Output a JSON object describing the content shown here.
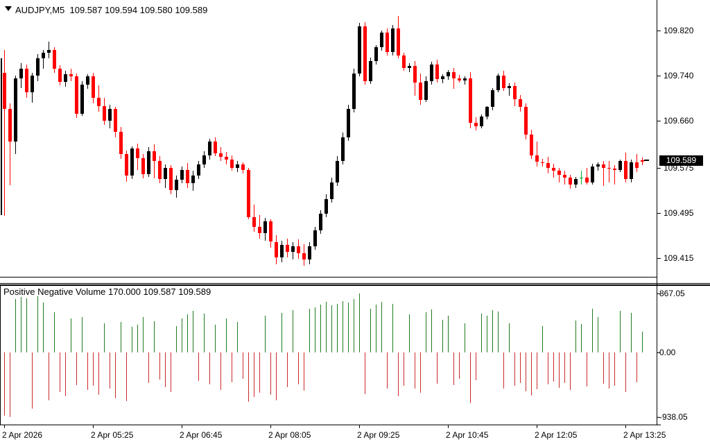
{
  "header": {
    "symbol_line": "AUDJPY,M5  109.587 109.594 109.580 109.589"
  },
  "indicator": {
    "title": "Positive Negative Volume 170.000 109.587 109.589"
  },
  "price_axis": {
    "labels": [
      "109.820",
      "109.740",
      "109.660",
      "109.575",
      "109.495",
      "109.415"
    ],
    "current_price": "109.589"
  },
  "volume_axis": {
    "labels": [
      "867.05",
      "0.00",
      "-938.05"
    ]
  },
  "time_axis": {
    "labels": [
      {
        "index": 0,
        "label": "2 Apr 2026"
      },
      {
        "index": 16,
        "label": "2 Apr 05:25"
      },
      {
        "index": 32,
        "label": "2 Apr 06:45"
      },
      {
        "index": 48,
        "label": "2 Apr 08:05"
      },
      {
        "index": 64,
        "label": "2 Apr 09:25"
      },
      {
        "index": 80,
        "label": "2 Apr 10:45"
      },
      {
        "index": 96,
        "label": "2 Apr 12:05"
      },
      {
        "index": 112,
        "label": "2 Apr 13:25"
      }
    ]
  },
  "colors": {
    "background": "#FFFFFF",
    "text": "#000000",
    "bull_candle": "#000000",
    "bear_candle": "#FF0000",
    "doji_candle": "#00B22C",
    "volume_up": "#1E7B1E",
    "volume_down": "#CC2929",
    "badge_bg": "#000000",
    "badge_fg": "#FFFFFF",
    "axis_line": "#000000"
  },
  "chart_data": {
    "type": "candlestick",
    "title": "AUDJPY,M5",
    "symbol": "AUDJPY",
    "timeframe": "M5",
    "current_bar": {
      "open": 109.587,
      "high": 109.594,
      "low": 109.58,
      "close": 109.589
    },
    "price_ticks": [
      109.82,
      109.74,
      109.66,
      109.575,
      109.495,
      109.415
    ],
    "ylim": [
      109.38,
      109.86
    ],
    "grid": false,
    "y_calibration": {
      "p1": 109.82,
      "y1": 44,
      "p2": 109.415,
      "y2": 372
    },
    "x_start": 6,
    "x_step": 8,
    "left_edge_wick": {
      "x": 1,
      "top": 109.77,
      "bottom": 109.492
    },
    "candles": [
      [
        109.745,
        109.785,
        109.49,
        109.68,
        "d"
      ],
      [
        109.68,
        109.69,
        109.545,
        109.622,
        "d"
      ],
      [
        109.622,
        109.74,
        109.6,
        109.735,
        "u"
      ],
      [
        109.735,
        109.762,
        109.718,
        109.752,
        "u"
      ],
      [
        109.752,
        109.76,
        109.7,
        109.71,
        "d"
      ],
      [
        109.71,
        109.745,
        109.692,
        109.74,
        "u"
      ],
      [
        109.74,
        109.778,
        109.73,
        109.77,
        "u"
      ],
      [
        109.77,
        109.786,
        109.752,
        109.78,
        "u"
      ],
      [
        109.78,
        109.8,
        109.77,
        109.785,
        "u"
      ],
      [
        109.785,
        109.79,
        109.745,
        109.752,
        "d"
      ],
      [
        109.752,
        109.758,
        109.722,
        109.728,
        "d"
      ],
      [
        109.728,
        109.748,
        109.72,
        109.742,
        "u"
      ],
      [
        109.742,
        109.752,
        109.73,
        109.738,
        "d"
      ],
      [
        109.738,
        109.744,
        109.664,
        109.672,
        "d"
      ],
      [
        109.672,
        109.73,
        109.668,
        109.724,
        "u"
      ],
      [
        109.724,
        109.742,
        109.716,
        109.738,
        "u"
      ],
      [
        109.738,
        109.745,
        109.69,
        109.7,
        "d"
      ],
      [
        109.7,
        109.722,
        109.676,
        109.686,
        "d"
      ],
      [
        109.686,
        109.7,
        109.652,
        109.66,
        "d"
      ],
      [
        109.66,
        109.688,
        109.646,
        109.68,
        "u"
      ],
      [
        109.68,
        109.684,
        109.63,
        109.64,
        "d"
      ],
      [
        109.64,
        109.648,
        109.592,
        109.6,
        "d"
      ],
      [
        109.6,
        109.606,
        109.551,
        109.562,
        "d"
      ],
      [
        109.562,
        109.614,
        109.556,
        109.61,
        "u"
      ],
      [
        109.61,
        109.619,
        109.572,
        109.593,
        "d"
      ],
      [
        109.593,
        109.6,
        109.557,
        109.565,
        "d"
      ],
      [
        109.565,
        109.612,
        109.56,
        109.605,
        "u"
      ],
      [
        109.605,
        109.618,
        109.557,
        109.588,
        "d"
      ],
      [
        109.588,
        109.596,
        109.548,
        109.556,
        "d"
      ],
      [
        109.556,
        109.582,
        109.54,
        109.575,
        "u"
      ],
      [
        109.575,
        109.58,
        109.528,
        109.536,
        "d"
      ],
      [
        109.536,
        109.562,
        109.522,
        109.555,
        "u"
      ],
      [
        109.555,
        109.578,
        109.548,
        109.572,
        "u"
      ],
      [
        109.572,
        109.584,
        109.54,
        109.548,
        "d"
      ],
      [
        109.548,
        109.57,
        109.535,
        109.562,
        "u"
      ],
      [
        109.562,
        109.588,
        109.556,
        109.582,
        "u"
      ],
      [
        109.582,
        109.605,
        109.575,
        109.598,
        "u"
      ],
      [
        109.598,
        109.627,
        109.59,
        109.622,
        "u"
      ],
      [
        109.622,
        109.63,
        109.596,
        109.602,
        "d"
      ],
      [
        109.602,
        109.612,
        109.588,
        109.595,
        "d"
      ],
      [
        109.595,
        109.604,
        109.582,
        109.59,
        "d"
      ],
      [
        109.59,
        109.598,
        109.57,
        109.576,
        "d"
      ],
      [
        109.576,
        109.588,
        109.568,
        109.582,
        "u"
      ],
      [
        109.582,
        109.586,
        109.566,
        109.572,
        "d"
      ],
      [
        109.572,
        109.576,
        109.484,
        109.488,
        "d"
      ],
      [
        109.488,
        109.51,
        109.462,
        109.47,
        "d"
      ],
      [
        109.47,
        109.492,
        109.45,
        109.46,
        "d"
      ],
      [
        109.46,
        109.486,
        109.446,
        109.48,
        "u"
      ],
      [
        109.48,
        109.484,
        109.434,
        109.444,
        "d"
      ],
      [
        109.444,
        109.456,
        109.404,
        109.416,
        "d"
      ],
      [
        109.416,
        109.446,
        109.408,
        109.438,
        "u"
      ],
      [
        109.438,
        109.45,
        109.416,
        109.426,
        "d"
      ],
      [
        109.426,
        109.444,
        109.412,
        109.436,
        "u"
      ],
      [
        109.436,
        109.448,
        109.414,
        109.424,
        "d"
      ],
      [
        109.424,
        109.44,
        109.402,
        109.412,
        "d"
      ],
      [
        109.412,
        109.444,
        109.404,
        109.436,
        "u"
      ],
      [
        109.436,
        109.47,
        109.43,
        109.464,
        "u"
      ],
      [
        109.464,
        109.5,
        109.458,
        109.494,
        "u"
      ],
      [
        109.494,
        109.528,
        109.488,
        109.52,
        "u"
      ],
      [
        109.52,
        109.558,
        109.514,
        109.55,
        "u"
      ],
      [
        109.55,
        109.596,
        109.544,
        109.588,
        "u"
      ],
      [
        109.588,
        109.638,
        109.582,
        109.63,
        "u"
      ],
      [
        109.63,
        109.688,
        109.624,
        109.68,
        "u"
      ],
      [
        109.68,
        109.752,
        109.674,
        109.744,
        "u"
      ],
      [
        109.744,
        109.833,
        109.738,
        109.827,
        "u"
      ],
      [
        109.827,
        109.835,
        109.724,
        109.73,
        "d"
      ],
      [
        109.73,
        109.772,
        109.725,
        109.766,
        "u"
      ],
      [
        109.766,
        109.794,
        109.76,
        109.79,
        "u"
      ],
      [
        109.79,
        109.82,
        109.784,
        109.816,
        "u"
      ],
      [
        109.816,
        109.824,
        109.776,
        109.782,
        "d"
      ],
      [
        109.782,
        109.83,
        109.776,
        109.824,
        "u"
      ],
      [
        109.824,
        109.846,
        109.77,
        109.775,
        "d"
      ],
      [
        109.775,
        109.78,
        109.748,
        109.753,
        "d"
      ],
      [
        109.753,
        109.762,
        109.746,
        109.757,
        "u"
      ],
      [
        109.757,
        109.766,
        109.704,
        109.727,
        "d"
      ],
      [
        109.727,
        109.744,
        109.688,
        109.697,
        "d"
      ],
      [
        109.697,
        109.738,
        109.693,
        109.73,
        "u"
      ],
      [
        109.73,
        109.764,
        109.724,
        109.76,
        "u"
      ],
      [
        109.76,
        109.768,
        109.728,
        109.733,
        "d"
      ],
      [
        109.733,
        109.742,
        109.726,
        109.738,
        "u"
      ],
      [
        109.738,
        109.75,
        109.732,
        109.746,
        "u"
      ],
      [
        109.746,
        109.753,
        109.716,
        109.735,
        "d"
      ],
      [
        109.735,
        109.741,
        109.727,
        109.731,
        "d"
      ],
      [
        109.731,
        109.738,
        109.724,
        109.735,
        "u"
      ],
      [
        109.735,
        109.746,
        109.646,
        109.656,
        "d"
      ],
      [
        109.656,
        109.666,
        109.642,
        109.65,
        "d"
      ],
      [
        109.65,
        109.67,
        109.646,
        109.667,
        "u"
      ],
      [
        109.667,
        109.686,
        109.662,
        109.684,
        "u"
      ],
      [
        109.684,
        109.718,
        109.678,
        109.714,
        "u"
      ],
      [
        109.714,
        109.744,
        109.71,
        109.74,
        "u"
      ],
      [
        109.74,
        109.748,
        109.712,
        109.717,
        "d"
      ],
      [
        109.717,
        109.726,
        109.704,
        109.721,
        "u"
      ],
      [
        109.721,
        109.727,
        109.686,
        109.698,
        "d"
      ],
      [
        109.698,
        109.705,
        109.676,
        109.684,
        "d"
      ],
      [
        109.684,
        109.69,
        109.626,
        109.635,
        "d"
      ],
      [
        109.635,
        109.644,
        109.592,
        109.598,
        "d"
      ],
      [
        109.598,
        109.622,
        109.578,
        109.586,
        "d"
      ],
      [
        109.586,
        109.592,
        109.578,
        109.584,
        "d"
      ],
      [
        109.584,
        109.595,
        109.566,
        109.576,
        "d"
      ],
      [
        109.576,
        109.583,
        109.558,
        109.57,
        "d"
      ],
      [
        109.57,
        109.576,
        109.55,
        109.563,
        "d"
      ],
      [
        109.563,
        109.57,
        109.546,
        109.558,
        "d"
      ],
      [
        109.558,
        109.563,
        109.538,
        109.546,
        "d"
      ],
      [
        109.546,
        109.56,
        109.54,
        109.556,
        "u"
      ],
      [
        109.558,
        109.57,
        109.546,
        109.558,
        "g"
      ],
      [
        109.558,
        109.576,
        109.546,
        109.55,
        "d"
      ],
      [
        109.55,
        109.583,
        109.546,
        109.578,
        "u"
      ],
      [
        109.578,
        109.586,
        109.57,
        109.582,
        "u"
      ],
      [
        109.582,
        109.588,
        109.543,
        109.576,
        "d"
      ],
      [
        109.576,
        109.588,
        109.55,
        109.574,
        "d"
      ],
      [
        109.574,
        109.58,
        109.546,
        109.572,
        "d"
      ],
      [
        109.572,
        109.59,
        109.568,
        109.588,
        "u"
      ],
      [
        109.588,
        109.603,
        109.55,
        109.556,
        "d"
      ],
      [
        109.556,
        109.59,
        109.55,
        109.586,
        "u"
      ],
      [
        109.586,
        109.6,
        109.568,
        109.576,
        "d"
      ],
      [
        109.587,
        109.594,
        109.58,
        109.589,
        "d"
      ]
    ],
    "volume": {
      "type": "bar",
      "name": "Positive Negative Volume",
      "parameter": "170.000",
      "axis_ticks": [
        867.05,
        0.0,
        -938.05
      ],
      "ylim": [
        -938.05,
        867.05
      ],
      "calibration": {
        "v1": 867.05,
        "y1": 11,
        "v2": -938.05,
        "y2": 189
      },
      "values": [
        -918,
        -938,
        785,
        815,
        795,
        -815,
        825,
        735,
        -695,
        590,
        -570,
        -630,
        500,
        -470,
        520,
        -540,
        -480,
        -610,
        430,
        -520,
        -660,
        450,
        -700,
        380,
        410,
        520,
        -440,
        460,
        -390,
        -505,
        -575,
        395,
        505,
        560,
        610,
        -415,
        575,
        -465,
        415,
        -545,
        505,
        -435,
        455,
        -385,
        -720,
        -640,
        -585,
        540,
        -615,
        -690,
        585,
        -505,
        620,
        -465,
        -555,
        640,
        660,
        700,
        745,
        690,
        720,
        760,
        735,
        790,
        867,
        -605,
        640,
        700,
        745,
        -520,
        715,
        -635,
        -480,
        560,
        -525,
        -585,
        590,
        630,
        -450,
        480,
        540,
        -470,
        -380,
        430,
        -735,
        -405,
        575,
        545,
        625,
        600,
        -520,
        435,
        -480,
        -440,
        -560,
        -620,
        -535,
        395,
        -465,
        -420,
        -510,
        -445,
        -545,
        470,
        420,
        -495,
        640,
        525,
        -455,
        -525,
        -480,
        615,
        -575,
        585,
        -435,
        310
      ]
    }
  }
}
